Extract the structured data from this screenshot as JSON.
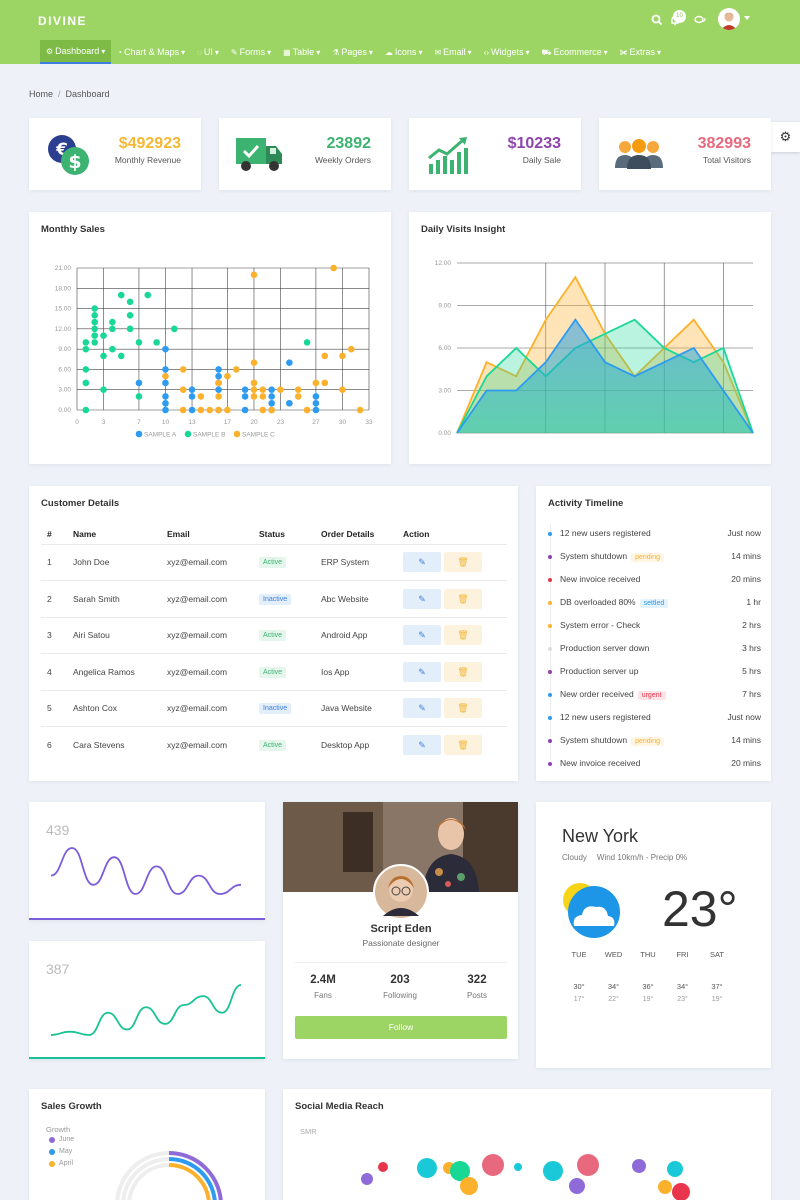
{
  "app": {
    "logo": "DIVINE",
    "notification_count": "10"
  },
  "nav": [
    {
      "label": "Dashboard",
      "icon": "gears-icon"
    },
    {
      "label": "Chart & Maps",
      "icon": "pie-chart-icon"
    },
    {
      "label": "UI",
      "icon": "circle-icon"
    },
    {
      "label": "Forms",
      "icon": "edit-icon"
    },
    {
      "label": "Table",
      "icon": "table-icon"
    },
    {
      "label": "Pages",
      "icon": "flask-icon"
    },
    {
      "label": "Icons",
      "icon": "cloud-icon"
    },
    {
      "label": "Email",
      "icon": "envelope-icon"
    },
    {
      "label": "Widgets",
      "icon": "code-icon"
    },
    {
      "label": "Ecommerce",
      "icon": "cart-icon"
    },
    {
      "label": "Extras",
      "icon": "wrench-icon"
    }
  ],
  "breadcrumb": {
    "home": "Home",
    "current": "Dashboard"
  },
  "stats": [
    {
      "value": "$492923",
      "label": "Monthly Revenue",
      "color": "#f7b731",
      "icon": "money-icon"
    },
    {
      "value": "23892",
      "label": "Weekly Orders",
      "color": "#3cb371",
      "icon": "truck-icon"
    },
    {
      "value": "$10233",
      "label": "Daily Sale",
      "color": "#8e44ad",
      "icon": "growth-chart-icon"
    },
    {
      "value": "382993",
      "label": "Total Visitors",
      "color": "#e8697d",
      "icon": "users-icon"
    }
  ],
  "monthly_sales": {
    "title": "Monthly Sales"
  },
  "daily_visits": {
    "title": "Daily Visits Insight"
  },
  "chart_data": [
    {
      "type": "scatter",
      "title": "Monthly Sales",
      "xlim": [
        0,
        33
      ],
      "ylim": [
        0,
        21
      ],
      "x_ticks": [
        "0",
        "3",
        "7",
        "10",
        "13",
        "17",
        "20",
        "23",
        "27",
        "30",
        "33"
      ],
      "y_ticks": [
        "0.00",
        "3.00",
        "6.00",
        "9.00",
        "12.00",
        "15.00",
        "18.00",
        "21.00"
      ],
      "legend": "bottom",
      "series": [
        {
          "name": "SAMPLE A",
          "color": "#2d9bf0",
          "points": [
            [
              10,
              9
            ],
            [
              10,
              6
            ],
            [
              10,
              4
            ],
            [
              10,
              2
            ],
            [
              10,
              1
            ],
            [
              10,
              0
            ],
            [
              13,
              3
            ],
            [
              13,
              2
            ],
            [
              13,
              0
            ],
            [
              16,
              6
            ],
            [
              16,
              5
            ],
            [
              16,
              4
            ],
            [
              16,
              3
            ],
            [
              16,
              0
            ],
            [
              19,
              3
            ],
            [
              19,
              2
            ],
            [
              19,
              0
            ],
            [
              22,
              3
            ],
            [
              22,
              2
            ],
            [
              22,
              1
            ],
            [
              22,
              0
            ],
            [
              24,
              7
            ],
            [
              24,
              1
            ],
            [
              27,
              2
            ],
            [
              27,
              1
            ],
            [
              27,
              0
            ],
            [
              7,
              4
            ]
          ]
        },
        {
          "name": "SAMPLE B",
          "color": "#19d895",
          "points": [
            [
              1,
              0
            ],
            [
              1,
              9
            ],
            [
              1,
              10
            ],
            [
              1,
              6
            ],
            [
              1,
              4
            ],
            [
              2,
              10
            ],
            [
              2,
              11
            ],
            [
              2,
              12
            ],
            [
              2,
              13
            ],
            [
              2,
              14
            ],
            [
              2,
              15
            ],
            [
              3,
              3
            ],
            [
              3,
              8
            ],
            [
              3,
              11
            ],
            [
              4,
              12
            ],
            [
              4,
              13
            ],
            [
              4,
              9
            ],
            [
              5,
              8
            ],
            [
              5,
              17
            ],
            [
              6,
              12
            ],
            [
              6,
              14
            ],
            [
              6,
              16
            ],
            [
              7,
              10
            ],
            [
              8,
              17
            ],
            [
              9,
              10
            ],
            [
              7,
              2
            ],
            [
              11,
              12
            ],
            [
              26,
              10
            ]
          ]
        },
        {
          "name": "SAMPLE C",
          "color": "#fcb12d",
          "points": [
            [
              20,
              20
            ],
            [
              29,
              21
            ],
            [
              20,
              7
            ],
            [
              20,
              4
            ],
            [
              20,
              3
            ],
            [
              18,
              6
            ],
            [
              16,
              0
            ],
            [
              16,
              2
            ],
            [
              16,
              4
            ],
            [
              15,
              0
            ],
            [
              14,
              0
            ],
            [
              14,
              2
            ],
            [
              12,
              0
            ],
            [
              12,
              3
            ],
            [
              12,
              6
            ],
            [
              17,
              0
            ],
            [
              17,
              5
            ],
            [
              20,
              2
            ],
            [
              21,
              2
            ],
            [
              21,
              3
            ],
            [
              21,
              0
            ],
            [
              22,
              0
            ],
            [
              23,
              3
            ],
            [
              25,
              2
            ],
            [
              25,
              3
            ],
            [
              26,
              0
            ],
            [
              27,
              4
            ],
            [
              28,
              4
            ],
            [
              28,
              8
            ],
            [
              30,
              3
            ],
            [
              30,
              8
            ],
            [
              31,
              9
            ],
            [
              32,
              0
            ],
            [
              10,
              5
            ]
          ]
        }
      ]
    },
    {
      "type": "area",
      "title": "Daily Visits Insight",
      "ylim": [
        0,
        12
      ],
      "y_ticks": [
        "0.00",
        "3.00",
        "6.00",
        "9.00",
        "12.00"
      ],
      "x": [
        0,
        1,
        2,
        3,
        4,
        5,
        6,
        7,
        8,
        9,
        10
      ],
      "series": [
        {
          "color": "#fcb12d",
          "values": [
            0,
            5,
            4,
            8,
            11,
            7,
            4,
            6,
            8,
            5,
            0
          ]
        },
        {
          "color": "#19d895",
          "values": [
            0,
            4,
            6,
            4,
            6,
            7,
            8,
            6,
            5,
            6,
            0
          ]
        },
        {
          "color": "#2d9bf0",
          "values": [
            0,
            3,
            3,
            5,
            8,
            5,
            4,
            5,
            6,
            3,
            0
          ]
        }
      ]
    },
    {
      "type": "line",
      "title": "",
      "label": "439",
      "color": "#7b5cd9",
      "values": [
        3,
        6,
        2,
        5,
        1,
        4,
        1,
        3,
        1,
        2
      ]
    },
    {
      "type": "line",
      "title": "",
      "label": "387",
      "color": "#19c295",
      "values": [
        1,
        1.3,
        1,
        3,
        1.5,
        3.5,
        2,
        3.7,
        4.5,
        3,
        5.5
      ]
    }
  ],
  "customers": {
    "title": "Customer Details",
    "headers": [
      "#",
      "Name",
      "Email",
      "Status",
      "Order Details",
      "Action"
    ],
    "rows": [
      {
        "num": "1",
        "name": "John Doe",
        "email": "xyz@email.com",
        "status": "Active",
        "order": "ERP System"
      },
      {
        "num": "2",
        "name": "Sarah Smith",
        "email": "xyz@email.com",
        "status": "Inactive",
        "order": "Abc Website"
      },
      {
        "num": "3",
        "name": "Airi Satou",
        "email": "xyz@email.com",
        "status": "Active",
        "order": "Android App"
      },
      {
        "num": "4",
        "name": "Angelica Ramos",
        "email": "xyz@email.com",
        "status": "Active",
        "order": "Ios App"
      },
      {
        "num": "5",
        "name": "Ashton Cox",
        "email": "xyz@email.com",
        "status": "Inactive",
        "order": "Java Website"
      },
      {
        "num": "6",
        "name": "Cara Stevens",
        "email": "xyz@email.com",
        "status": "Active",
        "order": "Desktop App"
      }
    ]
  },
  "timeline": {
    "title": "Activity Timeline",
    "items": [
      {
        "text": "12 new users registered",
        "time": "Just now",
        "dot": "#2d9bf0",
        "badge": ""
      },
      {
        "text": "System shutdown",
        "time": "14 mins",
        "dot": "#8e44ad",
        "badge": "pending",
        "badge_color": "#fcb12d"
      },
      {
        "text": "New invoice received",
        "time": "20 mins",
        "dot": "#e8354c",
        "badge": ""
      },
      {
        "text": "DB overloaded 80%",
        "time": "1 hr",
        "dot": "#fcb12d",
        "badge": "settled",
        "badge_color": "#2d9bf0"
      },
      {
        "text": "System error - Check",
        "time": "2 hrs",
        "dot": "#fcb12d",
        "badge": ""
      },
      {
        "text": "Production server down",
        "time": "3 hrs",
        "dot": "#dddddd",
        "badge": ""
      },
      {
        "text": "Production server up",
        "time": "5 hrs",
        "dot": "#8e44ad",
        "badge": ""
      },
      {
        "text": "New order received",
        "time": "7 hrs",
        "dot": "#2d9bf0",
        "badge": "urgent",
        "badge_color": "#e8354c"
      },
      {
        "text": "12 new users registered",
        "time": "Just now",
        "dot": "#2d9bf0",
        "badge": ""
      },
      {
        "text": "System shutdown",
        "time": "14 mins",
        "dot": "#8e44ad",
        "badge": "pending",
        "badge_color": "#fcb12d"
      },
      {
        "text": "New invoice received",
        "time": "20 mins",
        "dot": "#8e44ad",
        "badge": ""
      }
    ]
  },
  "profile": {
    "name": "Script Eden",
    "role": "Passionate designer",
    "stats": [
      {
        "value": "2.4M",
        "label": "Fans"
      },
      {
        "value": "203",
        "label": "Following"
      },
      {
        "value": "322",
        "label": "Posts"
      }
    ],
    "follow_label": "Follow"
  },
  "weather": {
    "city": "New York",
    "condition": "Cloudy",
    "details": "Wind 10km/h - Precip 0%",
    "temp": "23°",
    "forecast": [
      {
        "day": "TUE",
        "hi": "30°",
        "lo": "17°"
      },
      {
        "day": "WED",
        "hi": "34°",
        "lo": "22°"
      },
      {
        "day": "THU",
        "hi": "36°",
        "lo": "19°"
      },
      {
        "day": "FRI",
        "hi": "34°",
        "lo": "23°"
      },
      {
        "day": "SAT",
        "hi": "37°",
        "lo": "19°"
      }
    ]
  },
  "sales_growth": {
    "title": "Sales Growth",
    "subtitle": "Growth",
    "legend": [
      {
        "label": "June",
        "color": "#8e6bd8"
      },
      {
        "label": "May",
        "color": "#2d9bf0"
      },
      {
        "label": "April",
        "color": "#fcb12d"
      }
    ]
  },
  "social": {
    "title": "Social Media Reach",
    "subtitle": "SMR"
  }
}
